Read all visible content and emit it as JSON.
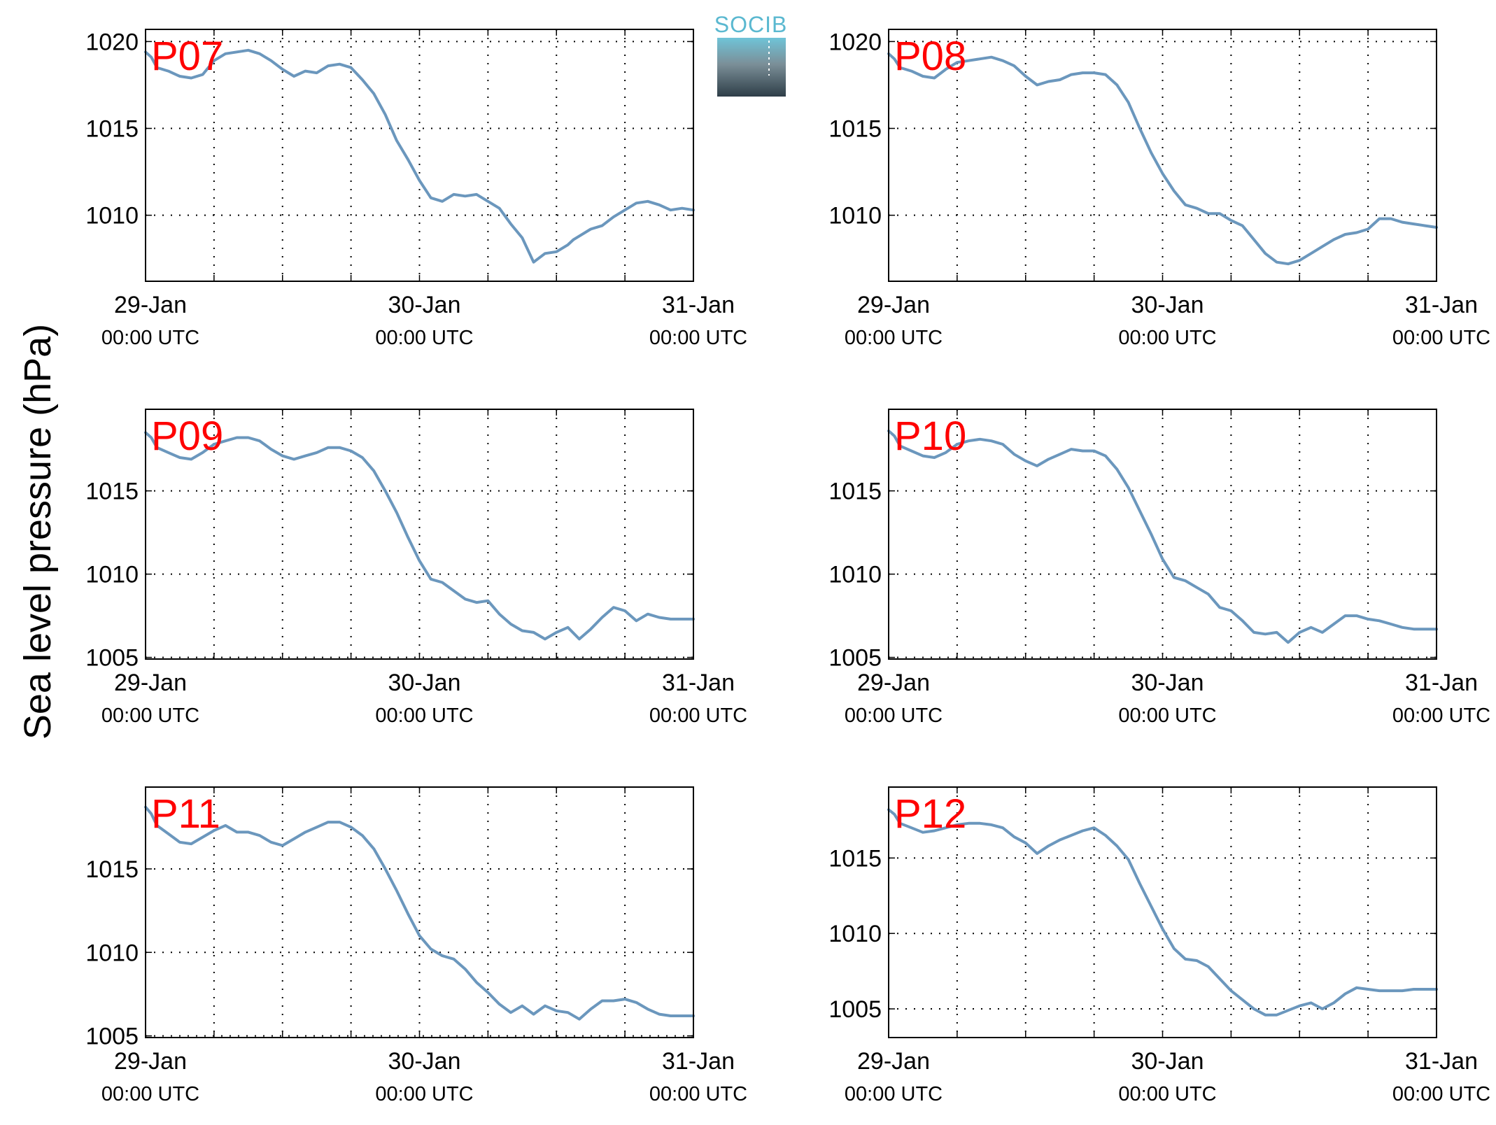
{
  "figure": {
    "ylabel": "Sea level pressure (hPa)",
    "logo_text": "SOCIB",
    "colors": {
      "line": "#6b97bd",
      "panel_label": "#ff0000",
      "grid": "#000000",
      "logo_teal": "#5ab8d0",
      "logo_dark": "#2e3e48"
    }
  },
  "chart_data": [
    {
      "type": "line",
      "label": "P07",
      "x_ticks": [
        {
          "day": "29-Jan",
          "time": "00:00 UTC"
        },
        {
          "day": "30-Jan",
          "time": "00:00 UTC"
        },
        {
          "day": "31-Jan",
          "time": "00:00 UTC"
        }
      ],
      "xlim": [
        0,
        48
      ],
      "ylim": [
        1006.2,
        1020.7
      ],
      "yticks": [
        1010,
        1015,
        1020
      ],
      "grid": true,
      "series": [
        {
          "x": [
            0,
            0.5,
            1,
            2,
            3,
            4,
            5,
            6,
            7,
            8,
            9,
            10,
            11,
            12,
            13,
            14,
            15,
            16,
            17,
            18,
            19,
            20,
            21,
            22,
            23,
            24,
            25,
            26,
            27,
            28,
            29,
            30,
            31,
            32,
            33,
            34,
            35,
            36,
            37,
            37.5,
            38,
            39,
            40,
            41,
            42,
            43,
            44,
            45,
            46,
            47,
            48
          ],
          "y": [
            1019.4,
            1019.1,
            1018.5,
            1018.3,
            1018.0,
            1017.9,
            1018.1,
            1018.9,
            1019.3,
            1019.4,
            1019.5,
            1019.3,
            1018.9,
            1018.4,
            1018.0,
            1018.3,
            1018.2,
            1018.6,
            1018.7,
            1018.5,
            1017.8,
            1017.0,
            1015.8,
            1014.3,
            1013.2,
            1012.0,
            1011.0,
            1010.8,
            1011.2,
            1011.1,
            1011.2,
            1010.8,
            1010.4,
            1009.5,
            1008.7,
            1007.3,
            1007.8,
            1007.9,
            1008.3,
            1008.6,
            1008.8,
            1009.2,
            1009.4,
            1009.9,
            1010.3,
            1010.7,
            1010.8,
            1010.6,
            1010.3,
            1010.4,
            1010.3
          ]
        }
      ]
    },
    {
      "type": "line",
      "label": "P08",
      "x_ticks": [
        {
          "day": "29-Jan",
          "time": "00:00 UTC"
        },
        {
          "day": "30-Jan",
          "time": "00:00 UTC"
        },
        {
          "day": "31-Jan",
          "time": "00:00 UTC"
        }
      ],
      "xlim": [
        0,
        48
      ],
      "ylim": [
        1006.2,
        1020.7
      ],
      "yticks": [
        1010,
        1015,
        1020
      ],
      "grid": true,
      "series": [
        {
          "x": [
            0,
            0.5,
            1,
            2,
            3,
            4,
            5,
            6,
            7,
            8,
            9,
            10,
            11,
            12,
            13,
            14,
            15,
            16,
            17,
            18,
            19,
            20,
            21,
            22,
            23,
            24,
            25,
            26,
            27,
            28,
            29,
            30,
            31,
            32,
            33,
            34,
            35,
            36,
            37,
            38,
            39,
            40,
            41,
            42,
            43,
            44,
            45,
            46,
            47,
            48
          ],
          "y": [
            1019.3,
            1019.0,
            1018.5,
            1018.3,
            1018.0,
            1017.9,
            1018.4,
            1018.8,
            1018.9,
            1019.0,
            1019.1,
            1018.9,
            1018.6,
            1018.0,
            1017.5,
            1017.7,
            1017.8,
            1018.1,
            1018.2,
            1018.2,
            1018.1,
            1017.5,
            1016.5,
            1015.0,
            1013.6,
            1012.4,
            1011.4,
            1010.6,
            1010.4,
            1010.1,
            1010.1,
            1009.7,
            1009.4,
            1008.6,
            1007.8,
            1007.3,
            1007.2,
            1007.4,
            1007.8,
            1008.2,
            1008.6,
            1008.9,
            1009.0,
            1009.2,
            1009.8,
            1009.8,
            1009.6,
            1009.5,
            1009.4,
            1009.3
          ]
        }
      ]
    },
    {
      "type": "line",
      "label": "P09",
      "x_ticks": [
        {
          "day": "29-Jan",
          "time": "00:00 UTC"
        },
        {
          "day": "30-Jan",
          "time": "00:00 UTC"
        },
        {
          "day": "31-Jan",
          "time": "00:00 UTC"
        }
      ],
      "xlim": [
        0,
        48
      ],
      "ylim": [
        1004.9,
        1019.9
      ],
      "yticks": [
        1005,
        1010,
        1015
      ],
      "grid": true,
      "series": [
        {
          "x": [
            0,
            0.5,
            1,
            2,
            3,
            4,
            5,
            6,
            7,
            8,
            9,
            10,
            11,
            12,
            13,
            14,
            15,
            16,
            17,
            18,
            19,
            20,
            21,
            22,
            23,
            24,
            25,
            26,
            27,
            28,
            29,
            30,
            31,
            32,
            33,
            34,
            35,
            36,
            37,
            38,
            39,
            40,
            41,
            42,
            43,
            44,
            45,
            46,
            47,
            48
          ],
          "y": [
            1018.5,
            1018.2,
            1017.6,
            1017.3,
            1017.0,
            1016.9,
            1017.3,
            1017.8,
            1018.0,
            1018.2,
            1018.2,
            1018.0,
            1017.5,
            1017.1,
            1016.9,
            1017.1,
            1017.3,
            1017.6,
            1017.6,
            1017.4,
            1017.0,
            1016.2,
            1015.0,
            1013.7,
            1012.2,
            1010.8,
            1009.7,
            1009.5,
            1009.0,
            1008.5,
            1008.3,
            1008.4,
            1007.6,
            1007.0,
            1006.6,
            1006.5,
            1006.1,
            1006.5,
            1006.8,
            1006.1,
            1006.7,
            1007.4,
            1008.0,
            1007.8,
            1007.2,
            1007.6,
            1007.4,
            1007.3,
            1007.3,
            1007.3
          ]
        }
      ]
    },
    {
      "type": "line",
      "label": "P10",
      "x_ticks": [
        {
          "day": "29-Jan",
          "time": "00:00 UTC"
        },
        {
          "day": "30-Jan",
          "time": "00:00 UTC"
        },
        {
          "day": "31-Jan",
          "time": "00:00 UTC"
        }
      ],
      "xlim": [
        0,
        48
      ],
      "ylim": [
        1004.9,
        1019.9
      ],
      "yticks": [
        1005,
        1010,
        1015
      ],
      "grid": true,
      "series": [
        {
          "x": [
            0,
            0.5,
            1,
            2,
            3,
            4,
            5,
            6,
            7,
            8,
            9,
            10,
            11,
            12,
            13,
            14,
            15,
            16,
            17,
            18,
            19,
            20,
            21,
            22,
            23,
            24,
            25,
            26,
            27,
            28,
            29,
            30,
            31,
            32,
            33,
            34,
            35,
            36,
            37,
            38,
            39,
            40,
            41,
            42,
            43,
            44,
            45,
            46,
            47,
            48
          ],
          "y": [
            1018.6,
            1018.3,
            1017.7,
            1017.4,
            1017.1,
            1017.0,
            1017.3,
            1017.8,
            1018.0,
            1018.1,
            1018.0,
            1017.8,
            1017.2,
            1016.8,
            1016.5,
            1016.9,
            1017.2,
            1017.5,
            1017.4,
            1017.4,
            1017.1,
            1016.3,
            1015.2,
            1013.8,
            1012.4,
            1010.9,
            1009.8,
            1009.6,
            1009.2,
            1008.8,
            1008.0,
            1007.8,
            1007.2,
            1006.5,
            1006.4,
            1006.5,
            1005.9,
            1006.5,
            1006.8,
            1006.5,
            1007.0,
            1007.5,
            1007.5,
            1007.3,
            1007.2,
            1007.0,
            1006.8,
            1006.7,
            1006.7,
            1006.7
          ]
        }
      ]
    },
    {
      "type": "line",
      "label": "P11",
      "x_ticks": [
        {
          "day": "29-Jan",
          "time": "00:00 UTC"
        },
        {
          "day": "30-Jan",
          "time": "00:00 UTC"
        },
        {
          "day": "31-Jan",
          "time": "00:00 UTC"
        }
      ],
      "xlim": [
        0,
        48
      ],
      "ylim": [
        1004.9,
        1019.9
      ],
      "yticks": [
        1005,
        1010,
        1015
      ],
      "grid": true,
      "series": [
        {
          "x": [
            0,
            0.5,
            1,
            2,
            3,
            4,
            5,
            6,
            7,
            8,
            9,
            10,
            11,
            12,
            13,
            14,
            15,
            16,
            17,
            18,
            19,
            20,
            21,
            22,
            23,
            24,
            25,
            26,
            27,
            28,
            29,
            30,
            31,
            32,
            33,
            34,
            35,
            36,
            37,
            38,
            39,
            40,
            41,
            42,
            43,
            44,
            45,
            46,
            47,
            48
          ],
          "y": [
            1018.7,
            1018.3,
            1017.6,
            1017.1,
            1016.6,
            1016.5,
            1016.9,
            1017.3,
            1017.6,
            1017.2,
            1017.2,
            1017.0,
            1016.6,
            1016.4,
            1016.8,
            1017.2,
            1017.5,
            1017.8,
            1017.8,
            1017.5,
            1017.0,
            1016.2,
            1015.0,
            1013.7,
            1012.3,
            1011.0,
            1010.2,
            1009.8,
            1009.6,
            1009.0,
            1008.2,
            1007.6,
            1006.9,
            1006.4,
            1006.8,
            1006.3,
            1006.8,
            1006.5,
            1006.4,
            1006.0,
            1006.6,
            1007.1,
            1007.1,
            1007.2,
            1007.0,
            1006.6,
            1006.3,
            1006.2,
            1006.2,
            1006.2
          ]
        }
      ]
    },
    {
      "type": "line",
      "label": "P12",
      "x_ticks": [
        {
          "day": "29-Jan",
          "time": "00:00 UTC"
        },
        {
          "day": "30-Jan",
          "time": "00:00 UTC"
        },
        {
          "day": "31-Jan",
          "time": "00:00 UTC"
        }
      ],
      "xlim": [
        0,
        48
      ],
      "ylim": [
        1003.1,
        1019.7
      ],
      "yticks": [
        1005,
        1010,
        1015
      ],
      "grid": true,
      "series": [
        {
          "x": [
            0,
            0.5,
            1,
            2,
            3,
            4,
            5,
            6,
            7,
            8,
            9,
            10,
            11,
            12,
            13,
            14,
            15,
            16,
            17,
            18,
            19,
            20,
            21,
            22,
            23,
            24,
            25,
            26,
            27,
            28,
            29,
            30,
            31,
            32,
            33,
            34,
            35,
            36,
            37,
            38,
            39,
            40,
            41,
            42,
            43,
            44,
            45,
            46,
            47,
            48
          ],
          "y": [
            1018.2,
            1017.9,
            1017.3,
            1017.0,
            1016.7,
            1016.8,
            1017.0,
            1017.2,
            1017.3,
            1017.3,
            1017.2,
            1017.0,
            1016.4,
            1016.0,
            1015.3,
            1015.8,
            1016.2,
            1016.5,
            1016.8,
            1017.0,
            1016.5,
            1015.8,
            1014.9,
            1013.3,
            1011.8,
            1010.3,
            1009.0,
            1008.3,
            1008.2,
            1007.8,
            1007.0,
            1006.2,
            1005.6,
            1005.0,
            1004.6,
            1004.6,
            1004.9,
            1005.2,
            1005.4,
            1005.0,
            1005.4,
            1006.0,
            1006.4,
            1006.3,
            1006.2,
            1006.2,
            1006.2,
            1006.3,
            1006.3,
            1006.3
          ]
        }
      ]
    }
  ]
}
